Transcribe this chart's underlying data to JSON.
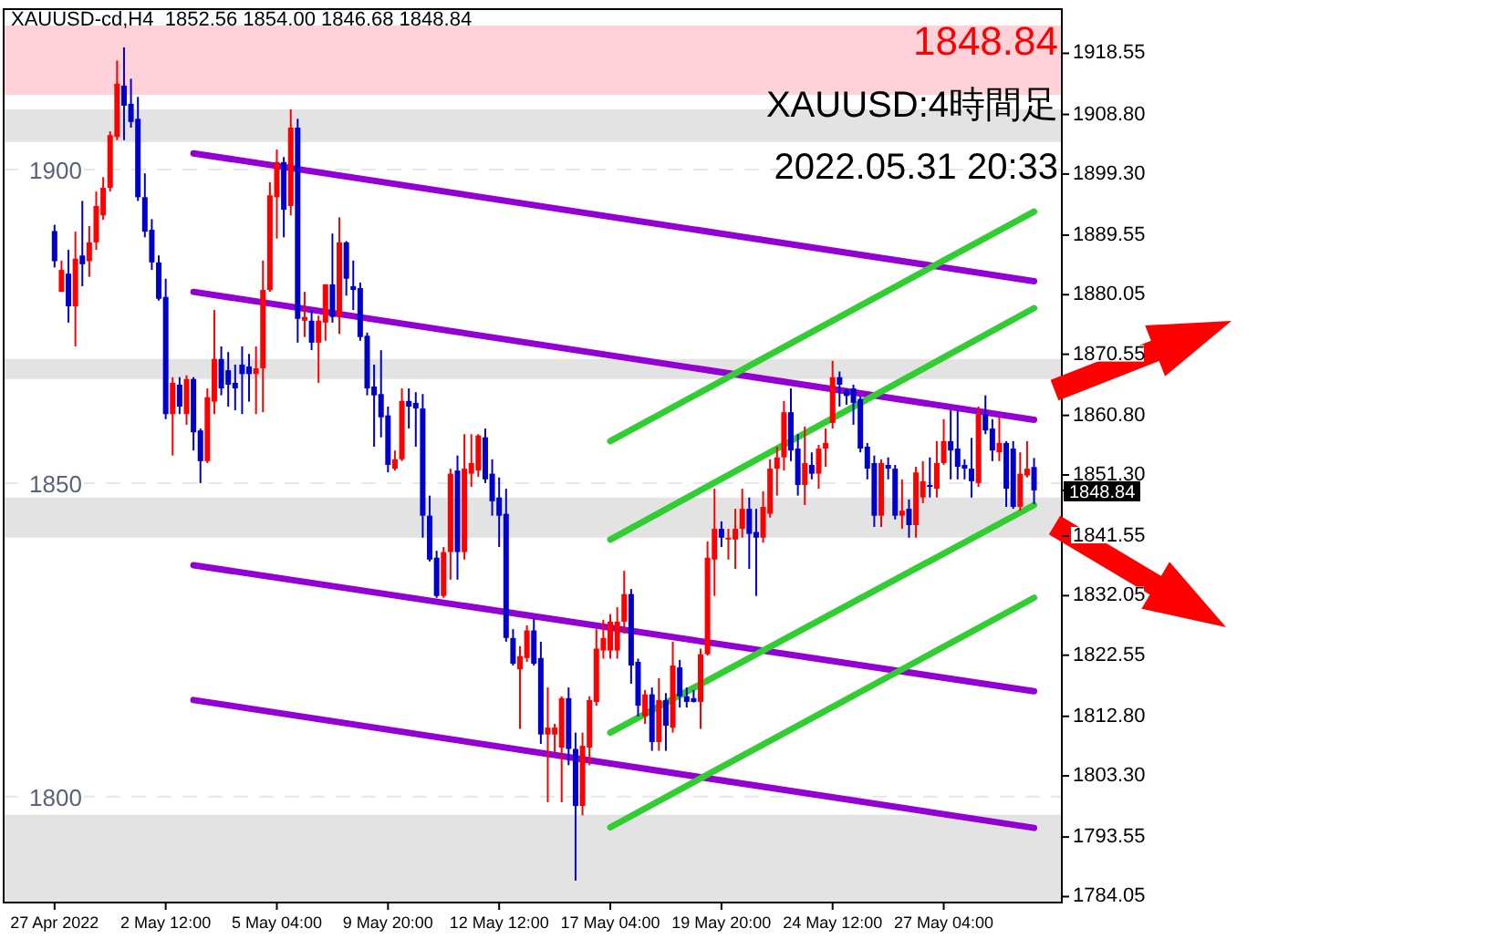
{
  "chart_data": {
    "type": "candlestick",
    "title": "XAUUSD-cd,H4  1852.56 1854.00 1846.68 1848.84",
    "annotations": [
      "1848.84",
      "XAUUSD:4時間足",
      "2022.05.31 20:33"
    ],
    "categories": [
      "27 Apr 2022",
      null,
      null,
      null,
      null,
      null,
      null,
      null,
      null,
      null,
      null,
      null,
      null,
      null,
      null,
      null,
      "2 May 12:00",
      null,
      null,
      null,
      null,
      null,
      null,
      null,
      null,
      null,
      null,
      null,
      null,
      null,
      null,
      null,
      "5 May 04:00",
      null,
      null,
      null,
      null,
      null,
      null,
      null,
      null,
      null,
      null,
      null,
      null,
      null,
      null,
      null,
      "9 May 20:00",
      null,
      null,
      null,
      null,
      null,
      null,
      null,
      null,
      null,
      null,
      null,
      null,
      null,
      null,
      null,
      "12 May 12:00",
      null,
      null,
      null,
      null,
      null,
      null,
      null,
      null,
      null,
      null,
      null,
      null,
      null,
      null,
      null,
      "17 May 04:00",
      null,
      null,
      null,
      null,
      null,
      null,
      null,
      null,
      null,
      null,
      null,
      null,
      null,
      null,
      null,
      "19 May 20:00",
      null,
      null,
      null,
      null,
      null,
      null,
      null,
      null,
      null,
      null,
      null,
      null,
      null,
      null,
      null,
      "24 May 12:00",
      null,
      null,
      null,
      null,
      null,
      null,
      null,
      null,
      null,
      null,
      null,
      null,
      null,
      null,
      null,
      "27 May 04:00",
      null,
      null,
      null,
      null,
      null,
      null,
      null,
      null,
      null,
      null,
      null,
      null,
      null
    ],
    "ohlc": [
      [
        1890.2,
        1891.2,
        1884.4,
        1885.4
      ],
      [
        1880.5,
        1885.5,
        1880.5,
        1884
      ],
      [
        1883.4,
        1887.2,
        1875.6,
        1878.2
      ],
      [
        1878.2,
        1890.1,
        1871.8,
        1885.8
      ],
      [
        1886.3,
        1895,
        1881.4,
        1884.9
      ],
      [
        1885.4,
        1891,
        1882.9,
        1888.4
      ],
      [
        1888.4,
        1896.5,
        1887.2,
        1894.2
      ],
      [
        1892.7,
        1898.8,
        1892,
        1897.1
      ],
      [
        1897.1,
        1906.1,
        1896.5,
        1905.5
      ],
      [
        1905.2,
        1917.4,
        1904.7,
        1913.7
      ],
      [
        1913.4,
        1919.5,
        1904.7,
        1910.2
      ],
      [
        1910.5,
        1914.5,
        1906.7,
        1907.6
      ],
      [
        1908.1,
        1911.6,
        1895,
        1895.6
      ],
      [
        1895.6,
        1899.4,
        1889.2,
        1890.1
      ],
      [
        1890.4,
        1892.1,
        1884,
        1885.2
      ],
      [
        1885.2,
        1886.3,
        1879.1,
        1879.4
      ],
      [
        1879.7,
        1882.6,
        1860.2,
        1861
      ],
      [
        1861,
        1866.9,
        1854.4,
        1866
      ],
      [
        1865.7,
        1866.9,
        1861,
        1862.2
      ],
      [
        1861,
        1867.2,
        1859.3,
        1866.6
      ],
      [
        1866.6,
        1866.9,
        1855.2,
        1858.1
      ],
      [
        1858.4,
        1858.7,
        1850,
        1853.5
      ],
      [
        1853.5,
        1865.1,
        1853.2,
        1863.7
      ],
      [
        1863,
        1877.6,
        1861,
        1869.8
      ],
      [
        1869.8,
        1871.8,
        1864,
        1865.1
      ],
      [
        1868,
        1870.9,
        1862.2,
        1865.7
      ],
      [
        1866,
        1868.9,
        1861.6,
        1865.1
      ],
      [
        1868.9,
        1871.8,
        1861,
        1867.4
      ],
      [
        1868.6,
        1870.6,
        1863,
        1867.4
      ],
      [
        1867.4,
        1871.8,
        1861,
        1868.3
      ],
      [
        1868.3,
        1885.5,
        1861.3,
        1880.8
      ],
      [
        1880.8,
        1898,
        1880.5,
        1895.9
      ],
      [
        1895.6,
        1903.2,
        1889,
        1901.2
      ],
      [
        1901.2,
        1902,
        1889.2,
        1893.6
      ],
      [
        1894.2,
        1909.6,
        1892.7,
        1906.7
      ],
      [
        1906.7,
        1908.1,
        1872.4,
        1876.2
      ],
      [
        1875.9,
        1880.5,
        1873.3,
        1876.5
      ],
      [
        1875.9,
        1877.6,
        1871.2,
        1872.4
      ],
      [
        1872.4,
        1876.7,
        1866,
        1875.9
      ],
      [
        1875.6,
        1881.7,
        1872.7,
        1881.7
      ],
      [
        1881.7,
        1889.8,
        1875.6,
        1876.5
      ],
      [
        1876.5,
        1892.4,
        1873.8,
        1888.4
      ],
      [
        1888.4,
        1888.6,
        1879.9,
        1882.6
      ],
      [
        1881.4,
        1885.5,
        1877.6,
        1880.8
      ],
      [
        1881.1,
        1882,
        1872.7,
        1873.3
      ],
      [
        1873.5,
        1874,
        1864,
        1865.1
      ],
      [
        1865.4,
        1868.9,
        1855.8,
        1864
      ],
      [
        1864.2,
        1871.2,
        1857.3,
        1860.5
      ],
      [
        1860.8,
        1862.2,
        1851.7,
        1852.9
      ],
      [
        1852.3,
        1855.2,
        1852,
        1853.8
      ],
      [
        1853.8,
        1865.1,
        1853.5,
        1863.1
      ],
      [
        1863.1,
        1865.1,
        1858.7,
        1862.2
      ],
      [
        1862.8,
        1864.5,
        1855.8,
        1861.9
      ],
      [
        1861.9,
        1864.2,
        1841.3,
        1844.8
      ],
      [
        1844.8,
        1848,
        1837.5,
        1837.8
      ],
      [
        1838.1,
        1839.2,
        1831.7,
        1832
      ],
      [
        1832,
        1839.8,
        1831.7,
        1839
      ],
      [
        1839,
        1852.3,
        1834.6,
        1851.5
      ],
      [
        1852,
        1854.4,
        1834.6,
        1839
      ],
      [
        1839,
        1857.8,
        1837.8,
        1852.3
      ],
      [
        1851.5,
        1857.8,
        1849.4,
        1853.2
      ],
      [
        1852,
        1857.8,
        1851,
        1857.6
      ],
      [
        1857.3,
        1858.7,
        1850,
        1850.6
      ],
      [
        1851.5,
        1853.8,
        1844.8,
        1847.1
      ],
      [
        1847.7,
        1850.9,
        1839.8,
        1844.8
      ],
      [
        1845.1,
        1849.1,
        1824.7,
        1825.3
      ],
      [
        1825.3,
        1826.7,
        1820.9,
        1821.2
      ],
      [
        1820.3,
        1824,
        1810.8,
        1822.4
      ],
      [
        1822.1,
        1827.3,
        1821.5,
        1826.5
      ],
      [
        1826.5,
        1828.5,
        1820.9,
        1821.2
      ],
      [
        1822.1,
        1824.7,
        1808.4,
        1809.9
      ],
      [
        1809.9,
        1817.4,
        1799.1,
        1811
      ],
      [
        1809.9,
        1811.6,
        1807,
        1811
      ],
      [
        1807.8,
        1816,
        1799.1,
        1815.7
      ],
      [
        1815.7,
        1817.4,
        1805,
        1807.6
      ],
      [
        1807.6,
        1810.2,
        1786.6,
        1798.5
      ],
      [
        1798.5,
        1810.2,
        1797,
        1808.1
      ],
      [
        1807.8,
        1816,
        1805,
        1815.4
      ],
      [
        1815.1,
        1826.7,
        1814.5,
        1823.6
      ],
      [
        1823.3,
        1828.2,
        1822,
        1825.3
      ],
      [
        1823.3,
        1829.1,
        1822,
        1827.9
      ],
      [
        1823.3,
        1830.2,
        1822,
        1827.9
      ],
      [
        1827.9,
        1836,
        1826,
        1832.3
      ],
      [
        1832.3,
        1833.1,
        1818,
        1820.9
      ],
      [
        1821.5,
        1822,
        1812.8,
        1814.5
      ],
      [
        1812.8,
        1817,
        1811.6,
        1816.3
      ],
      [
        1816.3,
        1817.4,
        1807.3,
        1808.7
      ],
      [
        1808.7,
        1818.9,
        1807.3,
        1815.4
      ],
      [
        1815.4,
        1816.5,
        1807.3,
        1811.3
      ],
      [
        1811,
        1824.7,
        1810.2,
        1820.9
      ],
      [
        1820.6,
        1821.8,
        1814.2,
        1816
      ],
      [
        1816,
        1817.4,
        1814.2,
        1815.1
      ],
      [
        1815.7,
        1817,
        1815,
        1815.1
      ],
      [
        1815.1,
        1823.6,
        1810.8,
        1822.7
      ],
      [
        1822.7,
        1840.7,
        1822.5,
        1838.1
      ],
      [
        1837.8,
        1849.1,
        1832,
        1842.7
      ],
      [
        1842.7,
        1843.9,
        1839.8,
        1841.3
      ],
      [
        1841,
        1842.7,
        1837.8,
        1841.3
      ],
      [
        1841,
        1845.9,
        1836.3,
        1842.7
      ],
      [
        1842.7,
        1849.1,
        1841.3,
        1845.9
      ],
      [
        1845.9,
        1847.7,
        1836.3,
        1841.9
      ],
      [
        1842.2,
        1845.9,
        1832,
        1841.3
      ],
      [
        1841.3,
        1848.7,
        1840.5,
        1846.2
      ],
      [
        1845.1,
        1853.8,
        1844.5,
        1852.3
      ],
      [
        1852.3,
        1855.8,
        1848,
        1854.1
      ],
      [
        1854.1,
        1863.1,
        1852,
        1861.3
      ],
      [
        1861.3,
        1865.1,
        1853.5,
        1855.2
      ],
      [
        1855.5,
        1857.8,
        1848,
        1849.7
      ],
      [
        1849.7,
        1859,
        1846.5,
        1853.2
      ],
      [
        1852.9,
        1854.9,
        1850.6,
        1851.5
      ],
      [
        1851.5,
        1856.1,
        1849.1,
        1855.5
      ],
      [
        1855.5,
        1858.7,
        1852.6,
        1856.4
      ],
      [
        1859.6,
        1869.5,
        1858.7,
        1866.9
      ],
      [
        1866.9,
        1867.8,
        1862.2,
        1865.7
      ],
      [
        1864.8,
        1865.1,
        1862.5,
        1863.9
      ],
      [
        1865.1,
        1865.7,
        1859.3,
        1862.8
      ],
      [
        1863.4,
        1863.9,
        1854.9,
        1855.5
      ],
      [
        1855.8,
        1856.4,
        1850.6,
        1852.3
      ],
      [
        1853.2,
        1854.4,
        1843,
        1844.8
      ],
      [
        1844.8,
        1853.8,
        1843,
        1853.2
      ],
      [
        1852.9,
        1854.1,
        1850.6,
        1852.3
      ],
      [
        1852.3,
        1852.9,
        1844.2,
        1844.8
      ],
      [
        1844.8,
        1850.6,
        1842.7,
        1845.6
      ],
      [
        1845.9,
        1847.4,
        1841.3,
        1843.3
      ],
      [
        1843.3,
        1852.6,
        1841.3,
        1851.7
      ],
      [
        1847.7,
        1853.5,
        1846.8,
        1850.3
      ],
      [
        1849.7,
        1854.1,
        1847.7,
        1849.4
      ],
      [
        1849.1,
        1856.7,
        1847.7,
        1853.2
      ],
      [
        1853.2,
        1860.2,
        1852.9,
        1856.7
      ],
      [
        1856.7,
        1861.6,
        1850.6,
        1855.2
      ],
      [
        1855.5,
        1861.6,
        1850.6,
        1852.6
      ],
      [
        1852.9,
        1853.8,
        1850.6,
        1852.3
      ],
      [
        1852.3,
        1857.2,
        1847.7,
        1850.3
      ],
      [
        1850,
        1862.2,
        1849.4,
        1861
      ],
      [
        1861,
        1864,
        1857.8,
        1858.4
      ],
      [
        1858.7,
        1860.2,
        1853.5,
        1855.2
      ],
      [
        1854.9,
        1860.5,
        1853.5,
        1856.4
      ],
      [
        1856.4,
        1856.7,
        1846.2,
        1849.1
      ],
      [
        1855.5,
        1856.7,
        1845.9,
        1846.2
      ],
      [
        1846.2,
        1854.9,
        1845.6,
        1851.5
      ],
      [
        1851.2,
        1856.7,
        1850.9,
        1852.3
      ],
      [
        1852.56,
        1854.0,
        1846.68,
        1848.84
      ]
    ],
    "colors": [
      "#0000cc",
      "#ff0000",
      "#0000cc",
      "#ff0000",
      "#0000cc",
      "#ff0000",
      "#ff0000",
      "#ff0000",
      "#ff0000",
      "#ff0000",
      "#0000cc",
      "#0000cc",
      "#0000cc",
      "#0000cc",
      "#0000cc",
      "#0000cc",
      "#0000cc",
      "#ff0000",
      "#0000cc",
      "#ff0000",
      "#0000cc",
      "#0000cc",
      "#ff0000",
      "#ff0000",
      "#0000cc",
      "#0000cc",
      "#0000cc",
      "#0000cc",
      "#0000cc",
      "#ff0000",
      "#ff0000",
      "#ff0000",
      "#ff0000",
      "#0000cc",
      "#ff0000",
      "#0000cc",
      "#ff0000",
      "#0000cc",
      "#ff0000",
      "#ff0000",
      "#0000cc",
      "#ff0000",
      "#0000cc",
      "#0000cc",
      "#0000cc",
      "#0000cc",
      "#0000cc",
      "#0000cc",
      "#0000cc",
      "#ff0000",
      "#ff0000",
      "#0000cc",
      "#0000cc",
      "#0000cc",
      "#0000cc",
      "#0000cc",
      "#ff0000",
      "#ff0000",
      "#0000cc",
      "#ff0000",
      "#ff0000",
      "#ff0000",
      "#0000cc",
      "#0000cc",
      "#0000cc",
      "#0000cc",
      "#0000cc",
      "#ff0000",
      "#ff0000",
      "#0000cc",
      "#0000cc",
      "#ff0000",
      "#ff0000",
      "#ff0000",
      "#0000cc",
      "#0000cc",
      "#ff0000",
      "#ff0000",
      "#ff0000",
      "#ff0000",
      "#ff0000",
      "#ff0000",
      "#ff0000",
      "#0000cc",
      "#0000cc",
      "#ff0000",
      "#0000cc",
      "#ff0000",
      "#0000cc",
      "#ff0000",
      "#0000cc",
      "#0000cc",
      "#0000cc",
      "#ff0000",
      "#ff0000",
      "#ff0000",
      "#0000cc",
      "#ff0000",
      "#ff0000",
      "#ff0000",
      "#0000cc",
      "#0000cc",
      "#ff0000",
      "#ff0000",
      "#ff0000",
      "#ff0000",
      "#0000cc",
      "#0000cc",
      "#ff0000",
      "#0000cc",
      "#ff0000",
      "#ff0000",
      "#ff0000",
      "#0000cc",
      "#0000cc",
      "#0000cc",
      "#0000cc",
      "#0000cc",
      "#0000cc",
      "#ff0000",
      "#0000cc",
      "#0000cc",
      "#ff0000",
      "#0000cc",
      "#ff0000",
      "#ff0000",
      "#0000cc",
      "#ff0000",
      "#ff0000",
      "#0000cc",
      "#0000cc",
      "#0000cc",
      "#0000cc",
      "#ff0000",
      "#0000cc",
      "#0000cc",
      "#ff0000",
      "#0000cc",
      "#0000cc",
      "#ff0000",
      "#ff0000",
      "#0000cc"
    ],
    "series": [
      {
        "type": "line",
        "color": "#9400d3",
        "values": [
          null,
          null,
          null,
          null,
          null,
          null,
          null,
          null,
          null,
          null,
          null,
          null,
          null,
          null,
          null,
          null,
          null,
          null,
          null,
          null,
          1902.6,
          null,
          null,
          null,
          null,
          null,
          null,
          null,
          null,
          null,
          null,
          null,
          null,
          null,
          null,
          null,
          null,
          null,
          null,
          null,
          null,
          null,
          null,
          null,
          null,
          null,
          null,
          null,
          null,
          null,
          null,
          null,
          null,
          null,
          null,
          null,
          null,
          null,
          null,
          null,
          null,
          null,
          null,
          null,
          null,
          null,
          null,
          null,
          null,
          null,
          null,
          null,
          null,
          null,
          null,
          null,
          null,
          null,
          null,
          null,
          null,
          null,
          null,
          null,
          null,
          null,
          null,
          null,
          null,
          null,
          null,
          null,
          null,
          null,
          null,
          null,
          null,
          null,
          null,
          null,
          null,
          null,
          null,
          null,
          null,
          null,
          null,
          null,
          null,
          null,
          null,
          null,
          null,
          null,
          null,
          null,
          null,
          null,
          null,
          null,
          null,
          null,
          null,
          null,
          null,
          null,
          null,
          null,
          null,
          null,
          null,
          null,
          null,
          null,
          null,
          null,
          null,
          null,
          null,
          null,
          null,
          1882.2
        ]
      },
      {
        "type": "line",
        "color": "#9400d3",
        "values": [
          null,
          null,
          null,
          null,
          null,
          null,
          null,
          null,
          null,
          null,
          null,
          null,
          null,
          null,
          null,
          null,
          null,
          null,
          null,
          null,
          1880.5,
          null,
          null,
          null,
          null,
          null,
          null,
          null,
          null,
          null,
          null,
          null,
          null,
          null,
          null,
          null,
          null,
          null,
          null,
          null,
          null,
          null,
          null,
          null,
          null,
          null,
          null,
          null,
          null,
          null,
          null,
          null,
          null,
          null,
          null,
          null,
          null,
          null,
          null,
          null,
          null,
          null,
          null,
          null,
          null,
          null,
          null,
          null,
          null,
          null,
          null,
          null,
          null,
          null,
          null,
          null,
          null,
          null,
          null,
          null,
          null,
          null,
          null,
          null,
          null,
          null,
          null,
          null,
          null,
          null,
          null,
          null,
          null,
          null,
          null,
          null,
          null,
          null,
          null,
          null,
          null,
          null,
          null,
          null,
          null,
          null,
          null,
          null,
          null,
          null,
          null,
          null,
          null,
          null,
          null,
          null,
          null,
          null,
          null,
          null,
          null,
          null,
          null,
          null,
          null,
          null,
          null,
          null,
          null,
          null,
          null,
          null,
          null,
          null,
          null,
          null,
          null,
          null,
          null,
          null,
          null,
          1860.1
        ]
      },
      {
        "type": "line",
        "color": "#9400d3",
        "values": [
          null,
          null,
          null,
          null,
          null,
          null,
          null,
          null,
          null,
          null,
          null,
          null,
          null,
          null,
          null,
          null,
          null,
          null,
          null,
          null,
          1836.9,
          null,
          null,
          null,
          null,
          null,
          null,
          null,
          null,
          null,
          null,
          null,
          null,
          null,
          null,
          null,
          null,
          null,
          null,
          null,
          null,
          null,
          null,
          null,
          null,
          null,
          null,
          null,
          null,
          null,
          null,
          null,
          null,
          null,
          null,
          null,
          null,
          null,
          null,
          null,
          null,
          null,
          null,
          null,
          null,
          null,
          null,
          null,
          null,
          null,
          null,
          null,
          null,
          null,
          null,
          null,
          null,
          null,
          null,
          null,
          null,
          null,
          null,
          null,
          null,
          null,
          null,
          null,
          null,
          null,
          null,
          null,
          null,
          null,
          null,
          null,
          null,
          null,
          null,
          null,
          null,
          null,
          null,
          null,
          null,
          null,
          null,
          null,
          null,
          null,
          null,
          null,
          null,
          null,
          null,
          null,
          null,
          null,
          null,
          null,
          null,
          null,
          null,
          null,
          null,
          null,
          null,
          null,
          null,
          null,
          null,
          null,
          null,
          null,
          null,
          null,
          null,
          null,
          null,
          null,
          null,
          1816.8
        ]
      },
      {
        "type": "line",
        "color": "#9400d3",
        "values": [
          null,
          null,
          null,
          null,
          null,
          null,
          null,
          null,
          null,
          null,
          null,
          null,
          null,
          null,
          null,
          null,
          null,
          null,
          null,
          null,
          1815.4,
          null,
          null,
          null,
          null,
          null,
          null,
          null,
          null,
          null,
          null,
          null,
          null,
          null,
          null,
          null,
          null,
          null,
          null,
          null,
          null,
          null,
          null,
          null,
          null,
          null,
          null,
          null,
          null,
          null,
          null,
          null,
          null,
          null,
          null,
          null,
          null,
          null,
          null,
          null,
          null,
          null,
          null,
          null,
          null,
          null,
          null,
          null,
          null,
          null,
          null,
          null,
          null,
          null,
          null,
          null,
          null,
          null,
          null,
          null,
          null,
          null,
          null,
          null,
          null,
          null,
          null,
          null,
          null,
          null,
          null,
          null,
          null,
          null,
          null,
          null,
          null,
          null,
          null,
          null,
          null,
          null,
          null,
          null,
          null,
          null,
          null,
          null,
          null,
          null,
          null,
          null,
          null,
          null,
          null,
          null,
          null,
          null,
          null,
          null,
          null,
          null,
          null,
          null,
          null,
          null,
          null,
          null,
          null,
          null,
          null,
          null,
          null,
          null,
          null,
          null,
          null,
          null,
          null,
          null,
          null,
          1795
        ]
      },
      {
        "type": "line",
        "color": "#32cd32",
        "values": [
          null,
          null,
          null,
          null,
          null,
          null,
          null,
          null,
          null,
          null,
          null,
          null,
          null,
          null,
          null,
          null,
          null,
          null,
          null,
          null,
          null,
          null,
          null,
          null,
          null,
          null,
          null,
          null,
          null,
          null,
          null,
          null,
          null,
          null,
          null,
          null,
          null,
          null,
          null,
          null,
          null,
          null,
          null,
          null,
          null,
          null,
          null,
          null,
          null,
          null,
          null,
          null,
          null,
          null,
          null,
          null,
          null,
          null,
          null,
          null,
          null,
          null,
          null,
          null,
          null,
          null,
          null,
          null,
          null,
          null,
          null,
          null,
          null,
          null,
          null,
          null,
          null,
          null,
          null,
          null,
          1856.7,
          null,
          null,
          null,
          null,
          null,
          null,
          null,
          null,
          null,
          null,
          null,
          null,
          null,
          null,
          null,
          null,
          null,
          null,
          null,
          null,
          null,
          null,
          null,
          null,
          null,
          null,
          null,
          null,
          null,
          null,
          null,
          null,
          null,
          null,
          null,
          null,
          null,
          null,
          null,
          null,
          null,
          null,
          null,
          null,
          null,
          null,
          null,
          null,
          null,
          null,
          null,
          null,
          null,
          null,
          null,
          null,
          null,
          null,
          null,
          null,
          1893.3
        ]
      },
      {
        "type": "line",
        "color": "#32cd32",
        "values": [
          null,
          null,
          null,
          null,
          null,
          null,
          null,
          null,
          null,
          null,
          null,
          null,
          null,
          null,
          null,
          null,
          null,
          null,
          null,
          null,
          null,
          null,
          null,
          null,
          null,
          null,
          null,
          null,
          null,
          null,
          null,
          null,
          null,
          null,
          null,
          null,
          null,
          null,
          null,
          null,
          null,
          null,
          null,
          null,
          null,
          null,
          null,
          null,
          null,
          null,
          null,
          null,
          null,
          null,
          null,
          null,
          null,
          null,
          null,
          null,
          null,
          null,
          null,
          null,
          null,
          null,
          null,
          null,
          null,
          null,
          null,
          null,
          null,
          null,
          null,
          null,
          null,
          null,
          null,
          null,
          1841,
          null,
          null,
          null,
          null,
          null,
          null,
          null,
          null,
          null,
          null,
          null,
          null,
          null,
          null,
          null,
          null,
          null,
          null,
          null,
          null,
          null,
          null,
          null,
          null,
          null,
          null,
          null,
          null,
          null,
          null,
          null,
          null,
          null,
          null,
          null,
          null,
          null,
          null,
          null,
          null,
          null,
          null,
          null,
          null,
          null,
          null,
          null,
          null,
          null,
          null,
          null,
          null,
          null,
          null,
          null,
          null,
          null,
          null,
          null,
          null,
          1877.9
        ]
      },
      {
        "type": "line",
        "color": "#32cd32",
        "values": [
          null,
          null,
          null,
          null,
          null,
          null,
          null,
          null,
          null,
          null,
          null,
          null,
          null,
          null,
          null,
          null,
          null,
          null,
          null,
          null,
          null,
          null,
          null,
          null,
          null,
          null,
          null,
          null,
          null,
          null,
          null,
          null,
          null,
          null,
          null,
          null,
          null,
          null,
          null,
          null,
          null,
          null,
          null,
          null,
          null,
          null,
          null,
          null,
          null,
          null,
          null,
          null,
          null,
          null,
          null,
          null,
          null,
          null,
          null,
          null,
          null,
          null,
          null,
          null,
          null,
          null,
          null,
          null,
          null,
          null,
          null,
          null,
          null,
          null,
          null,
          null,
          null,
          null,
          null,
          null,
          1810.2,
          null,
          null,
          null,
          null,
          null,
          null,
          null,
          null,
          null,
          null,
          null,
          null,
          null,
          null,
          null,
          null,
          null,
          null,
          null,
          null,
          null,
          null,
          null,
          null,
          null,
          null,
          null,
          null,
          null,
          null,
          null,
          null,
          null,
          null,
          null,
          null,
          null,
          null,
          null,
          null,
          null,
          null,
          null,
          null,
          null,
          null,
          null,
          null,
          null,
          null,
          null,
          null,
          null,
          null,
          null,
          null,
          null,
          null,
          null,
          null,
          1846.5
        ]
      },
      {
        "type": "line",
        "color": "#32cd32",
        "values": [
          null,
          null,
          null,
          null,
          null,
          null,
          null,
          null,
          null,
          null,
          null,
          null,
          null,
          null,
          null,
          null,
          null,
          null,
          null,
          null,
          null,
          null,
          null,
          null,
          null,
          null,
          null,
          null,
          null,
          null,
          null,
          null,
          null,
          null,
          null,
          null,
          null,
          null,
          null,
          null,
          null,
          null,
          null,
          null,
          null,
          null,
          null,
          null,
          null,
          null,
          null,
          null,
          null,
          null,
          null,
          null,
          null,
          null,
          null,
          null,
          null,
          null,
          null,
          null,
          null,
          null,
          null,
          null,
          null,
          null,
          null,
          null,
          null,
          null,
          null,
          null,
          null,
          null,
          null,
          null,
          1795.1,
          null,
          null,
          null,
          null,
          null,
          null,
          null,
          null,
          null,
          null,
          null,
          null,
          null,
          null,
          null,
          null,
          null,
          null,
          null,
          null,
          null,
          null,
          null,
          null,
          null,
          null,
          null,
          null,
          null,
          null,
          null,
          null,
          null,
          null,
          null,
          null,
          null,
          null,
          null,
          null,
          null,
          null,
          null,
          null,
          null,
          null,
          null,
          null,
          null,
          null,
          null,
          null,
          null,
          null,
          null,
          null,
          null,
          null,
          null,
          null,
          1831.7
        ]
      }
    ],
    "bands": [
      {
        "axis": "y",
        "from": 1911.9,
        "to": 1923,
        "color": "#ffd1d9"
      },
      {
        "axis": "y",
        "from": 1904.4,
        "to": 1909.6,
        "color": "#e3e3e3"
      },
      {
        "axis": "y",
        "from": 1866.6,
        "to": 1869.8,
        "color": "#e3e3e3"
      },
      {
        "axis": "y",
        "from": 1841.3,
        "to": 1847.7,
        "color": "#e3e3e3"
      },
      {
        "axis": "y",
        "from": 1783.1,
        "to": 1797.1,
        "color": "#e3e3e3"
      }
    ],
    "ref_lines": [
      {
        "axis": "y",
        "value": 1900,
        "label": "1900",
        "color": "#e6e6f5",
        "line_style": "dashed"
      },
      {
        "axis": "y",
        "value": 1850,
        "label": "1850",
        "color": "#e6e6f5",
        "line_style": "dashed"
      },
      {
        "axis": "y",
        "value": 1800,
        "label": "1800",
        "color": "#e6e6f5",
        "line_style": "dashed"
      }
    ],
    "ylim": [
      1783.1,
      1925.6
    ],
    "yticks": [
      {
        "value": 1918.55,
        "label": "1918.55"
      },
      {
        "value": 1908.8,
        "label": "1908.80"
      },
      {
        "value": 1899.3,
        "label": "1899.30"
      },
      {
        "value": 1889.55,
        "label": "1889.55"
      },
      {
        "value": 1880.05,
        "label": "1880.05"
      },
      {
        "value": 1870.55,
        "label": "1870.55"
      },
      {
        "value": 1860.8,
        "label": "1860.80"
      },
      {
        "value": 1851.3,
        "label": "1851.30"
      },
      {
        "value": 1841.55,
        "label": "1841.55"
      },
      {
        "value": 1832.05,
        "label": "1832.05"
      },
      {
        "value": 1822.55,
        "label": "1822.55"
      },
      {
        "value": 1812.8,
        "label": "1812.80"
      },
      {
        "value": 1803.3,
        "label": "1803.30"
      },
      {
        "value": 1793.55,
        "label": "1793.55"
      },
      {
        "value": 1784.05,
        "label": "1784.05"
      },
      {
        "value": 1848.84,
        "label": "1848.84"
      }
    ]
  }
}
